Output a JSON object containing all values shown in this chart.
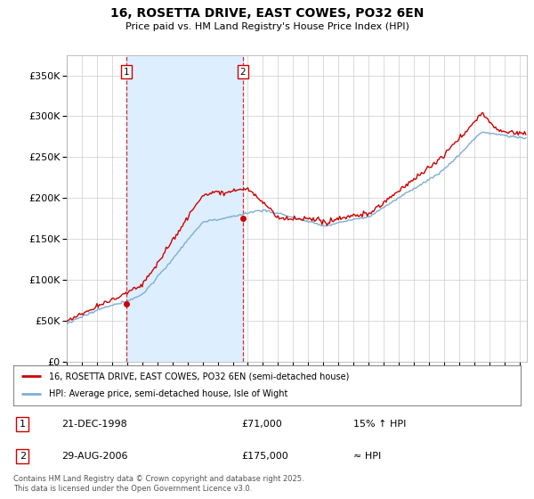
{
  "title": "16, ROSETTA DRIVE, EAST COWES, PO32 6EN",
  "subtitle": "Price paid vs. HM Land Registry's House Price Index (HPI)",
  "ylabel_ticks": [
    "£0",
    "£50K",
    "£100K",
    "£150K",
    "£200K",
    "£250K",
    "£300K",
    "£350K"
  ],
  "ytick_vals": [
    0,
    50000,
    100000,
    150000,
    200000,
    250000,
    300000,
    350000
  ],
  "ylim": [
    0,
    375000
  ],
  "xlim_start": 1995.0,
  "xlim_end": 2025.5,
  "purchase1_x": 1998.97,
  "purchase1_y": 71000,
  "purchase1_label": "1",
  "purchase1_date": "21-DEC-1998",
  "purchase1_price": "£71,000",
  "purchase1_hpi": "15% ↑ HPI",
  "purchase2_x": 2006.66,
  "purchase2_y": 175000,
  "purchase2_label": "2",
  "purchase2_date": "29-AUG-2006",
  "purchase2_price": "£175,000",
  "purchase2_hpi": "≈ HPI",
  "line1_color": "#cc0000",
  "line2_color": "#7dadd4",
  "line1_label": "16, ROSETTA DRIVE, EAST COWES, PO32 6EN (semi-detached house)",
  "line2_label": "HPI: Average price, semi-detached house, Isle of Wight",
  "marker_color": "#cc0000",
  "shading_color": "#ddeeff",
  "vline_color": "#cc0000",
  "grid_color": "#cccccc",
  "bg_color": "#ffffff",
  "footnote": "Contains HM Land Registry data © Crown copyright and database right 2025.\nThis data is licensed under the Open Government Licence v3.0."
}
